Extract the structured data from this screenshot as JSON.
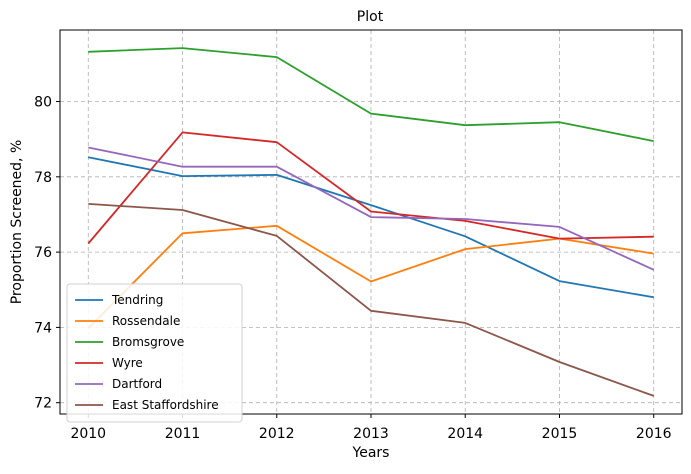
{
  "chart_data": {
    "type": "line",
    "title": "Plot",
    "xlabel": "Years",
    "ylabel": "Proportion Screened, %",
    "x": [
      2010,
      2011,
      2012,
      2013,
      2014,
      2015,
      2016
    ],
    "xlim": [
      2009.7,
      2016.3
    ],
    "ylim": [
      71.7,
      81.9
    ],
    "yticks": [
      72,
      74,
      76,
      78,
      80
    ],
    "grid": true,
    "legend_position": "lower-left",
    "series": [
      {
        "name": "Tendring",
        "color": "#1f77b4",
        "values": [
          78.52,
          78.02,
          78.05,
          77.25,
          76.42,
          75.23,
          74.8
        ]
      },
      {
        "name": "Rossendale",
        "color": "#ff7f0e",
        "values": [
          73.98,
          76.5,
          76.7,
          75.22,
          76.08,
          76.36,
          75.96
        ]
      },
      {
        "name": "Bromsgrove",
        "color": "#2ca02c",
        "values": [
          81.32,
          81.42,
          81.18,
          79.68,
          79.37,
          79.45,
          78.95
        ]
      },
      {
        "name": "Wyre",
        "color": "#d62728",
        "values": [
          76.23,
          79.18,
          78.92,
          77.08,
          76.83,
          76.36,
          76.41
        ]
      },
      {
        "name": "Dartford",
        "color": "#9467bd",
        "values": [
          78.78,
          78.27,
          78.27,
          76.93,
          76.88,
          76.67,
          75.53
        ]
      },
      {
        "name": "East Staffordshire",
        "color": "#8c564b",
        "values": [
          77.28,
          77.12,
          76.43,
          74.44,
          74.12,
          73.08,
          72.18
        ]
      }
    ]
  }
}
